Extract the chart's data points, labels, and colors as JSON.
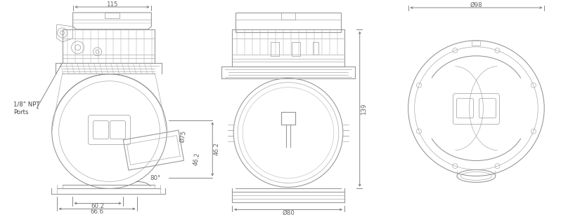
{
  "bg_color": "#ffffff",
  "line_color": "#aaaaaa",
  "med_line": "#999999",
  "dim_color": "#666666",
  "text_color": "#444444",
  "fig_width": 7.98,
  "fig_height": 3.1,
  "annotations": {
    "dim_115": "115",
    "dim_80": "Ø80",
    "dim_75": "Ø75",
    "dim_98": "Ø98",
    "dim_139": "139",
    "dim_60_2": "60.2",
    "dim_66_6": "66.6",
    "dim_46_2": "46.2",
    "dim_80deg": "80°",
    "label_npt": "1/8\" NPT\nPorts"
  }
}
